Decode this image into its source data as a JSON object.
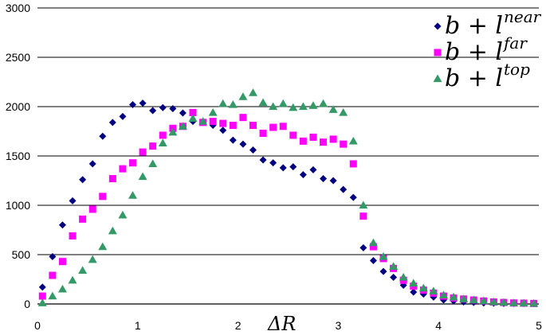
{
  "chart_data": {
    "type": "scatter",
    "title": "",
    "xlabel": "ΔR",
    "ylabel": "",
    "xlim": [
      0,
      5
    ],
    "ylim": [
      0,
      3000
    ],
    "x_ticks": [
      "0",
      "1",
      "2",
      "3",
      "4",
      "5"
    ],
    "y_ticks": [
      "0",
      "500",
      "1000",
      "1500",
      "2000",
      "2500",
      "3000"
    ],
    "grid": "horizontal",
    "legend_position": "top-right",
    "series": [
      {
        "name": "b + l^near",
        "name_base": "b + l",
        "name_sup": "near",
        "marker": "diamond",
        "color": "#000080",
        "x": [
          0.05,
          0.15,
          0.25,
          0.35,
          0.45,
          0.55,
          0.65,
          0.75,
          0.85,
          0.95,
          1.05,
          1.15,
          1.25,
          1.35,
          1.45,
          1.55,
          1.65,
          1.75,
          1.85,
          1.95,
          2.05,
          2.15,
          2.25,
          2.35,
          2.45,
          2.55,
          2.65,
          2.75,
          2.85,
          2.95,
          3.05,
          3.15,
          3.25,
          3.35,
          3.45,
          3.55,
          3.65,
          3.75,
          3.85,
          3.95,
          4.05,
          4.15,
          4.25,
          4.35,
          4.45,
          4.55,
          4.65,
          4.75,
          4.85,
          4.95
        ],
        "y": [
          170,
          480,
          800,
          1045,
          1260,
          1420,
          1700,
          1840,
          1900,
          2020,
          2035,
          1960,
          1990,
          1980,
          1935,
          1850,
          1840,
          1810,
          1760,
          1660,
          1620,
          1560,
          1460,
          1430,
          1380,
          1390,
          1310,
          1360,
          1270,
          1250,
          1160,
          1080,
          570,
          440,
          330,
          270,
          190,
          120,
          100,
          70,
          40,
          30,
          20,
          15,
          10,
          8,
          5,
          5,
          5,
          3
        ]
      },
      {
        "name": "b + l^far",
        "name_base": "b + l",
        "name_sup": "far",
        "marker": "square",
        "color": "#ff00ff",
        "x": [
          0.05,
          0.15,
          0.25,
          0.35,
          0.45,
          0.55,
          0.65,
          0.75,
          0.85,
          0.95,
          1.05,
          1.15,
          1.25,
          1.35,
          1.45,
          1.55,
          1.65,
          1.75,
          1.85,
          1.95,
          2.05,
          2.15,
          2.25,
          2.35,
          2.45,
          2.55,
          2.65,
          2.75,
          2.85,
          2.95,
          3.05,
          3.15,
          3.25,
          3.35,
          3.45,
          3.55,
          3.65,
          3.75,
          3.85,
          3.95,
          4.05,
          4.15,
          4.25,
          4.35,
          4.45,
          4.55,
          4.65,
          4.75,
          4.85,
          4.95
        ],
        "y": [
          80,
          290,
          430,
          690,
          860,
          960,
          1090,
          1270,
          1370,
          1430,
          1540,
          1600,
          1710,
          1780,
          1800,
          1940,
          1840,
          1850,
          1830,
          1810,
          1890,
          1810,
          1730,
          1790,
          1800,
          1710,
          1650,
          1690,
          1640,
          1670,
          1620,
          1420,
          890,
          580,
          460,
          360,
          240,
          180,
          140,
          110,
          80,
          60,
          50,
          40,
          30,
          20,
          15,
          10,
          8,
          5
        ]
      },
      {
        "name": "b + l^top",
        "name_base": "b + l",
        "name_sup": "top",
        "marker": "triangle",
        "color": "#339966",
        "x": [
          0.05,
          0.15,
          0.25,
          0.35,
          0.45,
          0.55,
          0.65,
          0.75,
          0.85,
          0.95,
          1.05,
          1.15,
          1.25,
          1.35,
          1.45,
          1.55,
          1.65,
          1.75,
          1.85,
          1.95,
          2.05,
          2.15,
          2.25,
          2.35,
          2.45,
          2.55,
          2.65,
          2.75,
          2.85,
          2.95,
          3.05,
          3.15,
          3.25,
          3.35,
          3.45,
          3.55,
          3.65,
          3.75,
          3.85,
          3.95,
          4.05,
          4.15,
          4.25,
          4.35,
          4.45,
          4.55,
          4.65,
          4.75,
          4.85,
          4.95
        ],
        "y": [
          10,
          80,
          150,
          240,
          340,
          450,
          580,
          740,
          900,
          1100,
          1290,
          1420,
          1630,
          1740,
          1800,
          1880,
          1850,
          1940,
          2030,
          2020,
          2100,
          2140,
          2040,
          2000,
          2030,
          1990,
          2000,
          2010,
          2030,
          1970,
          1940,
          1650,
          1000,
          620,
          480,
          380,
          270,
          210,
          160,
          130,
          90,
          70,
          50,
          40,
          30,
          20,
          15,
          10,
          8,
          5
        ]
      }
    ]
  }
}
